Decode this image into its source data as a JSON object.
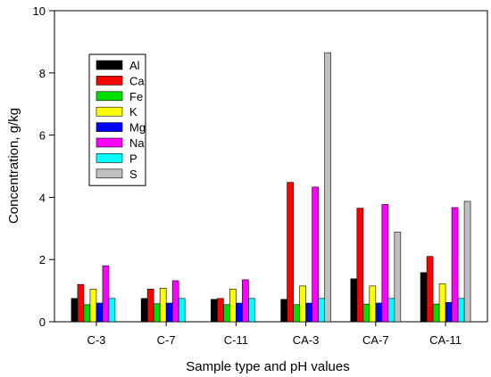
{
  "chart_data": {
    "type": "bar",
    "xlabel": "Sample type and pH values",
    "ylabel": "Concentration, g/kg",
    "ylim": [
      0,
      10
    ],
    "yticks": [
      0,
      2,
      4,
      6,
      8,
      10
    ],
    "grid": false,
    "legend_position": "top-left",
    "categories": [
      "C-3",
      "C-7",
      "C-11",
      "CA-3",
      "CA-7",
      "CA-11"
    ],
    "series": [
      {
        "name": "Al",
        "color": "#000000",
        "values": [
          0.75,
          0.75,
          0.72,
          0.72,
          1.38,
          1.58
        ]
      },
      {
        "name": "Ca",
        "color": "#ff0000",
        "values": [
          1.2,
          1.05,
          0.75,
          4.48,
          3.65,
          2.1
        ]
      },
      {
        "name": "Fe",
        "color": "#00e000",
        "values": [
          0.55,
          0.58,
          0.55,
          0.55,
          0.57,
          0.57
        ]
      },
      {
        "name": "K",
        "color": "#ffff00",
        "values": [
          1.05,
          1.08,
          1.05,
          1.15,
          1.15,
          1.22
        ]
      },
      {
        "name": "Mg",
        "color": "#0000ff",
        "values": [
          0.6,
          0.6,
          0.6,
          0.6,
          0.6,
          0.62
        ]
      },
      {
        "name": "Na",
        "color": "#ff00ff",
        "values": [
          1.8,
          1.32,
          1.35,
          4.33,
          3.77,
          3.67
        ]
      },
      {
        "name": "P",
        "color": "#00ffff",
        "values": [
          0.75,
          0.75,
          0.75,
          0.75,
          0.75,
          0.75
        ]
      },
      {
        "name": "S",
        "color": "#c0c0c0",
        "values": [
          null,
          null,
          null,
          8.65,
          2.88,
          3.87
        ]
      }
    ]
  }
}
